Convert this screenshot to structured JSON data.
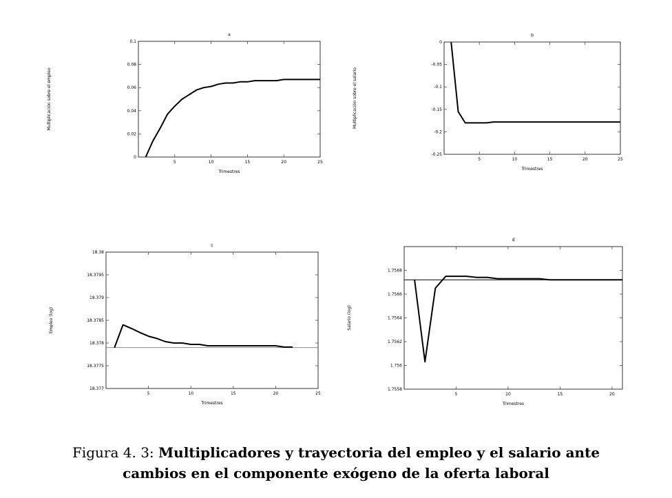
{
  "chart_data": [
    {
      "type": "line",
      "title": "a",
      "xlabel": "Trimestres",
      "ylabel": "Multiplicación sobre el empleo",
      "xlim": [
        0,
        25
      ],
      "ylim": [
        0,
        0.1
      ],
      "xticks": [
        "5",
        "10",
        "15",
        "20",
        "25"
      ],
      "yticks": [
        "0",
        "0.02",
        "0.04",
        "0.06",
        "0.08",
        "0.1"
      ],
      "series": [
        {
          "x": [
            1,
            2,
            3,
            4,
            5,
            6,
            7,
            8,
            9,
            10,
            11,
            12,
            13,
            14,
            15,
            16,
            17,
            18,
            19,
            20,
            21,
            22,
            23,
            24,
            25
          ],
          "values": [
            0,
            0.014,
            0.025,
            0.037,
            0.044,
            0.05,
            0.054,
            0.058,
            0.06,
            0.061,
            0.063,
            0.064,
            0.064,
            0.065,
            0.065,
            0.066,
            0.066,
            0.066,
            0.066,
            0.067,
            0.067,
            0.067,
            0.067,
            0.067,
            0.067
          ]
        }
      ]
    },
    {
      "type": "line",
      "title": "b",
      "xlabel": "Trimestres",
      "ylabel": "Multiplicación sobre el salario",
      "xlim": [
        0,
        25
      ],
      "ylim": [
        -0.25,
        0
      ],
      "xticks": [
        "5",
        "10",
        "15",
        "20",
        "25"
      ],
      "yticks": [
        "0",
        "-0.05",
        "-0.1",
        "-0.15",
        "-0.2",
        "-0.25"
      ],
      "series": [
        {
          "x": [
            1,
            2,
            3,
            4,
            5,
            6,
            7,
            8,
            9,
            10,
            11,
            12,
            13,
            14,
            15,
            16,
            17,
            18,
            19,
            20,
            21,
            22,
            23,
            24,
            25
          ],
          "values": [
            0,
            -0.155,
            -0.18,
            -0.18,
            -0.18,
            -0.18,
            -0.178,
            -0.178,
            -0.178,
            -0.178,
            -0.178,
            -0.178,
            -0.178,
            -0.178,
            -0.178,
            -0.178,
            -0.178,
            -0.178,
            -0.178,
            -0.178,
            -0.178,
            -0.178,
            -0.178,
            -0.178,
            -0.178
          ]
        }
      ]
    },
    {
      "type": "line",
      "title": "c",
      "xlabel": "Trimestres",
      "ylabel": "Empleo (log)",
      "xlim": [
        0,
        25
      ],
      "ylim": [
        18.377,
        18.38
      ],
      "xticks": [
        "5",
        "10",
        "15",
        "20",
        "25"
      ],
      "yticks": [
        "18.377",
        "18.3775",
        "18.378",
        "18.3785",
        "18.379",
        "18.3795",
        "18.38"
      ],
      "baseline": 18.3779,
      "series": [
        {
          "x": [
            1,
            2,
            3,
            4,
            5,
            6,
            7,
            8,
            9,
            10,
            11,
            12,
            13,
            14,
            15,
            16,
            17,
            18,
            19,
            20,
            21,
            22
          ],
          "values": [
            18.3779,
            18.3784,
            18.37832,
            18.37823,
            18.37815,
            18.3781,
            18.37803,
            18.378,
            18.378,
            18.37797,
            18.37797,
            18.37794,
            18.37794,
            18.37794,
            18.37794,
            18.37794,
            18.37794,
            18.37794,
            18.37794,
            18.37794,
            18.37791,
            18.37791
          ]
        }
      ]
    },
    {
      "type": "line",
      "title": "d",
      "xlabel": "Trimestres",
      "ylabel": "Salario (log)",
      "xlim": [
        0,
        21
      ],
      "ylim": [
        1.7558,
        1.757
      ],
      "xticks": [
        "5",
        "10",
        "15",
        "20"
      ],
      "yticks": [
        "1.7558",
        "1.756",
        "1.7562",
        "1.7564",
        "1.7566",
        "1.7568"
      ],
      "baseline": 1.75672,
      "series": [
        {
          "x": [
            1,
            2,
            3,
            4,
            5,
            6,
            7,
            8,
            9,
            10,
            11,
            12,
            13,
            14,
            15,
            16,
            17,
            18,
            19,
            20,
            21
          ],
          "values": [
            1.75672,
            1.75603,
            1.75665,
            1.75675,
            1.75675,
            1.75675,
            1.75674,
            1.75674,
            1.75673,
            1.75673,
            1.75673,
            1.75673,
            1.75673,
            1.75672,
            1.75672,
            1.75672,
            1.75672,
            1.75672,
            1.75672,
            1.75672,
            1.75672
          ]
        }
      ]
    }
  ],
  "caption": {
    "number": "Figura 4. 3:",
    "line1": "Multiplicadores y trayectoria del empleo y el salario ante",
    "line2": "cambios en el componente exógeno de la oferta laboral"
  }
}
